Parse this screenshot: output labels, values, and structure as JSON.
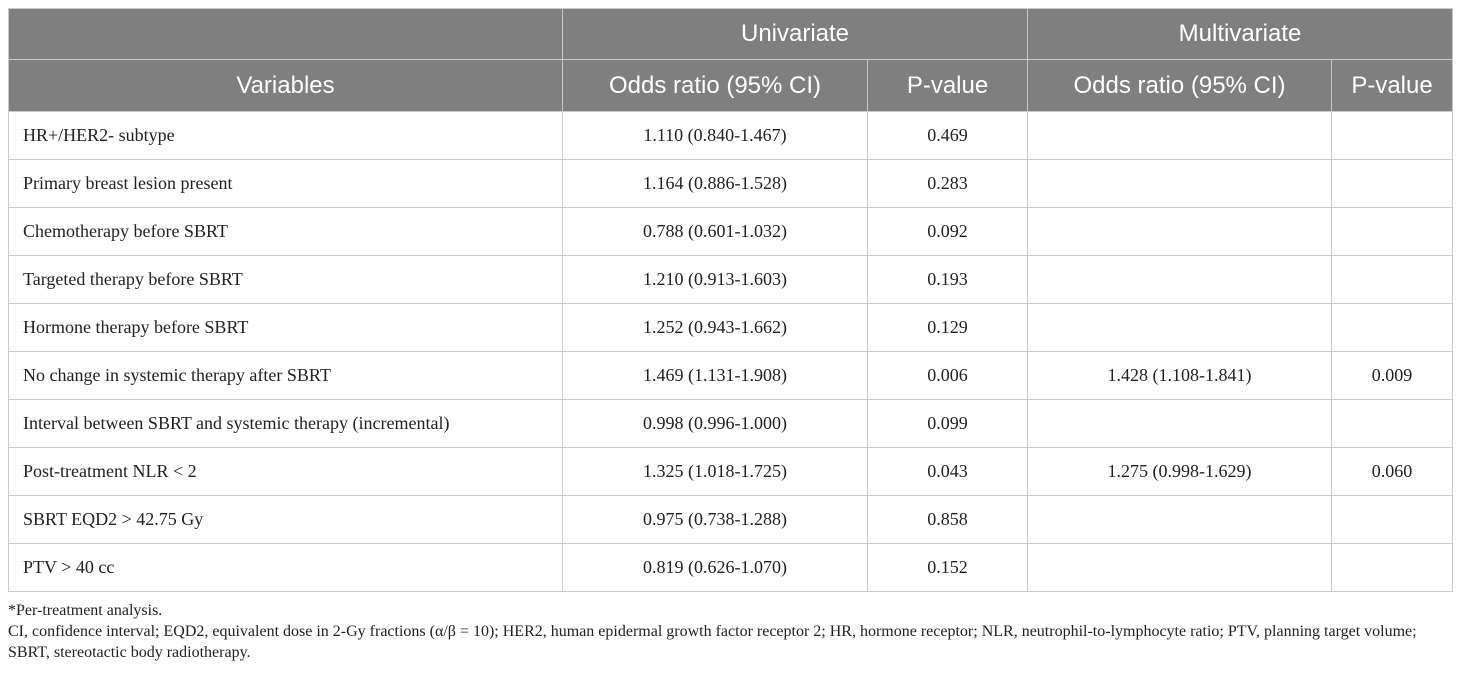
{
  "table": {
    "groups": {
      "univariate": "Univariate",
      "multivariate": "Multivariate"
    },
    "columns": {
      "variables": "Variables",
      "uni_or": "Odds ratio (95% CI)",
      "uni_p": "P-value",
      "multi_or": "Odds ratio (95% CI)",
      "multi_p": "P-value"
    },
    "rows": [
      {
        "variable": "HR+/HER2- subtype",
        "uni_or": "1.110 (0.840-1.467)",
        "uni_p": "0.469",
        "multi_or": "",
        "multi_p": ""
      },
      {
        "variable": "Primary breast lesion present",
        "uni_or": "1.164 (0.886-1.528)",
        "uni_p": "0.283",
        "multi_or": "",
        "multi_p": ""
      },
      {
        "variable": "Chemotherapy before SBRT",
        "uni_or": "0.788 (0.601-1.032)",
        "uni_p": "0.092",
        "multi_or": "",
        "multi_p": ""
      },
      {
        "variable": "Targeted therapy before SBRT",
        "uni_or": "1.210 (0.913-1.603)",
        "uni_p": "0.193",
        "multi_or": "",
        "multi_p": ""
      },
      {
        "variable": "Hormone therapy before SBRT",
        "uni_or": "1.252 (0.943-1.662)",
        "uni_p": "0.129",
        "multi_or": "",
        "multi_p": ""
      },
      {
        "variable": "No change in systemic therapy after SBRT",
        "uni_or": "1.469 (1.131-1.908)",
        "uni_p": "0.006",
        "multi_or": "1.428 (1.108-1.841)",
        "multi_p": "0.009"
      },
      {
        "variable": "Interval between SBRT and systemic therapy (incremental)",
        "uni_or": "0.998 (0.996-1.000)",
        "uni_p": "0.099",
        "multi_or": "",
        "multi_p": ""
      },
      {
        "variable": "Post-treatment NLR < 2",
        "uni_or": "1.325 (1.018-1.725)",
        "uni_p": "0.043",
        "multi_or": "1.275 (0.998-1.629)",
        "multi_p": "0.060"
      },
      {
        "variable": "SBRT EQD2 > 42.75 Gy",
        "uni_or": "0.975 (0.738-1.288)",
        "uni_p": "0.858",
        "multi_or": "",
        "multi_p": ""
      },
      {
        "variable": "PTV > 40 cc",
        "uni_or": "0.819 (0.626-1.070)",
        "uni_p": "0.152",
        "multi_or": "",
        "multi_p": ""
      }
    ]
  },
  "footnotes": {
    "note1": "*Per-treatment analysis.",
    "note2": "CI, confidence interval; EQD2, equivalent dose in 2-Gy fractions (α/β = 10); HER2, human epidermal growth factor receptor 2; HR, hormone receptor; NLR, neutrophil-to-lymphocyte ratio; PTV, planning target volume; SBRT, stereotactic body radiotherapy."
  },
  "colors": {
    "header_bg": "#7f7f7f",
    "header_text": "#ffffff",
    "border": "#c9c9c9"
  }
}
